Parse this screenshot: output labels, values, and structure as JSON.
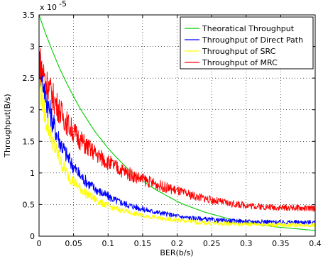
{
  "chart_data": {
    "type": "line",
    "title": "",
    "xlabel": "BER(b/s)",
    "ylabel": "Throughput(B/s)",
    "y_multiplier_label": "x 10",
    "y_multiplier_exponent": "-5",
    "xlim": [
      0,
      0.4
    ],
    "ylim": [
      0,
      3.5
    ],
    "x_ticks": [
      0,
      0.05,
      0.1,
      0.15,
      0.2,
      0.25,
      0.3,
      0.35,
      0.4
    ],
    "x_tick_labels": [
      "0",
      "0.05",
      "0.1",
      "0.15",
      "0.2",
      "0.25",
      "0.3",
      "0.35",
      "0.4"
    ],
    "y_ticks": [
      0,
      0.5,
      1,
      1.5,
      2,
      2.5,
      3,
      3.5
    ],
    "y_tick_labels": [
      "0",
      "0.5",
      "1",
      "1.5",
      "2",
      "2.5",
      "3",
      "3.5"
    ],
    "grid": true,
    "legend_position": "top-right",
    "x": [
      0,
      0.01,
      0.02,
      0.03,
      0.04,
      0.05,
      0.06,
      0.07,
      0.08,
      0.09,
      0.1,
      0.11,
      0.12,
      0.13,
      0.14,
      0.15,
      0.16,
      0.17,
      0.18,
      0.19,
      0.2,
      0.21,
      0.22,
      0.23,
      0.24,
      0.25,
      0.26,
      0.27,
      0.28,
      0.29,
      0.3,
      0.31,
      0.32,
      0.33,
      0.34,
      0.35,
      0.36,
      0.37,
      0.38,
      0.39,
      0.4
    ],
    "series": [
      {
        "name": "Theoratical Throughput",
        "color": "#00cc00",
        "values": [
          3.5,
          3.19,
          2.91,
          2.65,
          2.42,
          2.21,
          2.01,
          1.84,
          1.67,
          1.53,
          1.39,
          1.27,
          1.16,
          1.05,
          0.96,
          0.88,
          0.8,
          0.73,
          0.67,
          0.61,
          0.55,
          0.5,
          0.46,
          0.42,
          0.38,
          0.35,
          0.32,
          0.29,
          0.26,
          0.24,
          0.22,
          0.2,
          0.18,
          0.17,
          0.15,
          0.14,
          0.13,
          0.12,
          0.11,
          0.1,
          0.09
        ]
      },
      {
        "name": "Throughput of Direct Path",
        "color": "#0000ff",
        "values": [
          2.75,
          2.2,
          1.8,
          1.5,
          1.28,
          1.1,
          0.95,
          0.85,
          0.76,
          0.69,
          0.63,
          0.57,
          0.53,
          0.49,
          0.46,
          0.43,
          0.4,
          0.38,
          0.36,
          0.34,
          0.32,
          0.3,
          0.29,
          0.28,
          0.27,
          0.26,
          0.25,
          0.25,
          0.24,
          0.24,
          0.23,
          0.23,
          0.23,
          0.23,
          0.22,
          0.22,
          0.22,
          0.22,
          0.22,
          0.22,
          0.22
        ]
      },
      {
        "name": "Throughput of SRC",
        "color": "#ffff00",
        "values": [
          2.45,
          1.85,
          1.48,
          1.2,
          1.0,
          0.86,
          0.75,
          0.66,
          0.59,
          0.53,
          0.48,
          0.44,
          0.41,
          0.38,
          0.35,
          0.33,
          0.31,
          0.29,
          0.27,
          0.26,
          0.25,
          0.24,
          0.23,
          0.22,
          0.21,
          0.21,
          0.2,
          0.2,
          0.2,
          0.19,
          0.19,
          0.19,
          0.19,
          0.18,
          0.18,
          0.18,
          0.18,
          0.18,
          0.18,
          0.18,
          0.18
        ]
      },
      {
        "name": "Throughput of MRC",
        "color": "#ff0000",
        "values": [
          2.8,
          2.45,
          2.2,
          1.98,
          1.8,
          1.65,
          1.52,
          1.41,
          1.32,
          1.24,
          1.17,
          1.1,
          1.04,
          0.99,
          0.94,
          0.9,
          0.86,
          0.82,
          0.78,
          0.75,
          0.72,
          0.68,
          0.65,
          0.62,
          0.6,
          0.57,
          0.55,
          0.53,
          0.51,
          0.5,
          0.49,
          0.48,
          0.47,
          0.46,
          0.46,
          0.45,
          0.45,
          0.45,
          0.44,
          0.44,
          0.44
        ]
      }
    ]
  }
}
